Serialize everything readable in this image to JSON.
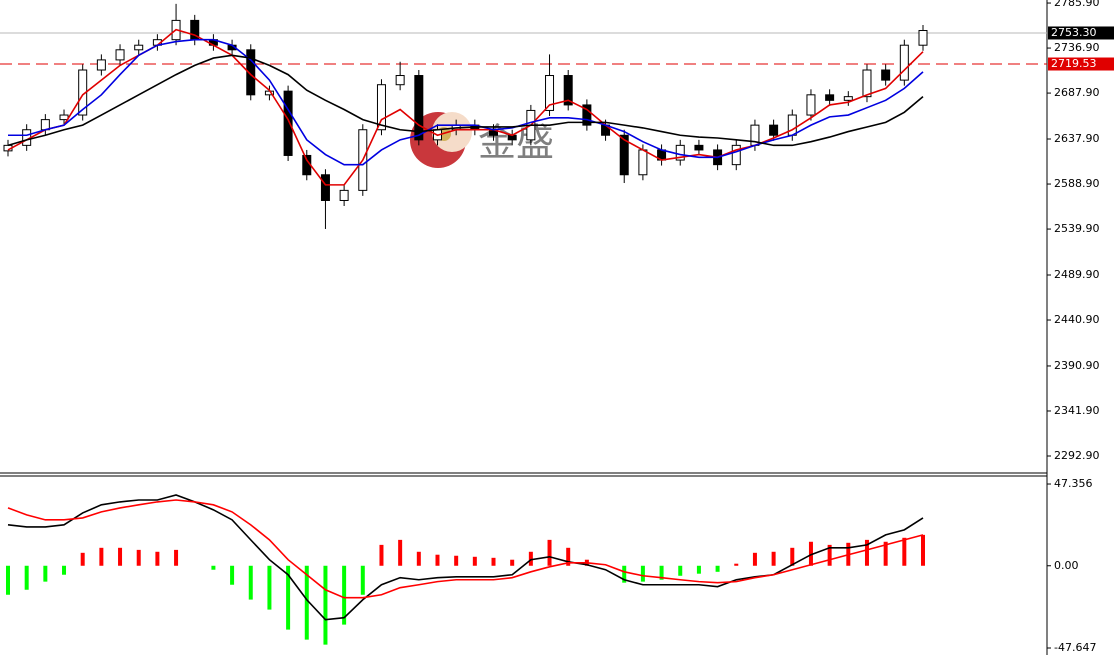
{
  "chart_data": [
    {
      "type": "candlestick",
      "open": [
        2625,
        2631,
        2648,
        2659,
        2664,
        2713,
        2724,
        2735,
        2740,
        2746,
        2767,
        2746,
        2740,
        2735,
        2686,
        2690,
        2620,
        2599,
        2571,
        2582,
        2648,
        2697,
        2707,
        2637,
        2648,
        2653,
        2648,
        2642,
        2637,
        2669,
        2707,
        2675,
        2653,
        2642,
        2599,
        2626,
        2615,
        2631,
        2626,
        2610,
        2631,
        2653,
        2642,
        2664,
        2686,
        2680,
        2684,
        2713,
        2702,
        2740
      ],
      "high": [
        2637,
        2654,
        2665,
        2670,
        2719,
        2730,
        2741,
        2746,
        2752,
        2785,
        2773,
        2752,
        2746,
        2741,
        2696,
        2696,
        2626,
        2605,
        2588,
        2654,
        2703,
        2722,
        2713,
        2654,
        2659,
        2659,
        2654,
        2648,
        2675,
        2730,
        2713,
        2681,
        2659,
        2648,
        2632,
        2632,
        2637,
        2637,
        2632,
        2637,
        2659,
        2659,
        2670,
        2692,
        2692,
        2690,
        2719,
        2719,
        2746,
        2762
      ],
      "low": [
        2619,
        2625,
        2642,
        2653,
        2658,
        2707,
        2718,
        2729,
        2734,
        2740,
        2740,
        2734,
        2729,
        2680,
        2680,
        2614,
        2593,
        2540,
        2565,
        2576,
        2642,
        2691,
        2631,
        2631,
        2642,
        2642,
        2636,
        2631,
        2631,
        2663,
        2669,
        2647,
        2636,
        2590,
        2593,
        2609,
        2609,
        2620,
        2604,
        2604,
        2625,
        2636,
        2636,
        2658,
        2674,
        2674,
        2678,
        2696,
        2696,
        2734
      ],
      "close": [
        2631,
        2648,
        2659,
        2664,
        2713,
        2724,
        2735,
        2740,
        2746,
        2767,
        2746,
        2740,
        2735,
        2686,
        2690,
        2620,
        2599,
        2571,
        2582,
        2648,
        2697,
        2707,
        2637,
        2648,
        2653,
        2648,
        2642,
        2637,
        2669,
        2707,
        2675,
        2653,
        2642,
        2599,
        2626,
        2615,
        2631,
        2626,
        2610,
        2631,
        2653,
        2642,
        2664,
        2686,
        2680,
        2684,
        2713,
        2702,
        2740,
        2756
      ],
      "up_color": "#ffffff",
      "down_color": "#000000",
      "lines": [
        {
          "color": "#e00000",
          "values": [
            2626,
            2637,
            2648,
            2653,
            2686,
            2702,
            2718,
            2729,
            2740,
            2757,
            2751,
            2740,
            2729,
            2708,
            2691,
            2659,
            2615,
            2588,
            2588,
            2615,
            2659,
            2670,
            2653,
            2642,
            2648,
            2648,
            2648,
            2642,
            2653,
            2675,
            2680,
            2670,
            2653,
            2637,
            2626,
            2615,
            2618,
            2621,
            2618,
            2626,
            2631,
            2639,
            2648,
            2661,
            2675,
            2678,
            2686,
            2693,
            2713,
            2733
          ]
        },
        {
          "color": "#0000e0",
          "values": [
            2642,
            2642,
            2648,
            2653,
            2670,
            2686,
            2708,
            2729,
            2740,
            2744,
            2746,
            2746,
            2740,
            2724,
            2702,
            2670,
            2637,
            2621,
            2610,
            2610,
            2626,
            2637,
            2642,
            2653,
            2653,
            2653,
            2648,
            2650,
            2656,
            2661,
            2661,
            2659,
            2653,
            2646,
            2635,
            2626,
            2621,
            2618,
            2618,
            2624,
            2631,
            2637,
            2642,
            2653,
            2662,
            2664,
            2672,
            2680,
            2693,
            2711
          ]
        },
        {
          "color": "#000000",
          "values": [
            2631,
            2637,
            2642,
            2648,
            2653,
            2664,
            2675,
            2686,
            2697,
            2708,
            2718,
            2726,
            2729,
            2726,
            2718,
            2708,
            2691,
            2680,
            2670,
            2659,
            2653,
            2648,
            2646,
            2648,
            2650,
            2651,
            2651,
            2651,
            2653,
            2653,
            2656,
            2656,
            2656,
            2653,
            2650,
            2646,
            2642,
            2640,
            2639,
            2637,
            2635,
            2631,
            2631,
            2635,
            2640,
            2646,
            2651,
            2656,
            2667,
            2684
          ]
        }
      ],
      "price_lines": [
        {
          "value": 2753.3,
          "label": "2753.30",
          "line_color": "#b8b8b8",
          "box_color": "#000000",
          "dashed": false
        },
        {
          "value": 2719.53,
          "label": "2719.53",
          "line_color": "#e00000",
          "box_color": "#e00000",
          "dashed": true
        }
      ],
      "ylim": [
        2274.4,
        2789.2
      ],
      "yticks": [
        {
          "value": 2785.9,
          "label": "2785.90"
        },
        {
          "value": 2736.9,
          "label": "2736.90"
        },
        {
          "value": 2687.9,
          "label": "2687.90"
        },
        {
          "value": 2637.9,
          "label": "2637.90"
        },
        {
          "value": 2588.9,
          "label": "2588.90"
        },
        {
          "value": 2539.9,
          "label": "2539.90"
        },
        {
          "value": 2489.9,
          "label": "2489.90"
        },
        {
          "value": 2440.9,
          "label": "2440.90"
        },
        {
          "value": 2390.9,
          "label": "2390.90"
        },
        {
          "value": 2341.9,
          "label": "2341.90"
        },
        {
          "value": 2292.9,
          "label": "2292.90"
        }
      ]
    },
    {
      "type": "macd",
      "histogram": [
        -16.8,
        -13.9,
        -9.2,
        -5.2,
        7.5,
        10.4,
        10.4,
        9.2,
        8.1,
        9.2,
        0,
        -2.3,
        -11,
        -19.6,
        -25.4,
        -37,
        -42.8,
        -45.7,
        -34.1,
        -16.8,
        12.1,
        15,
        8.1,
        6.4,
        5.8,
        5.2,
        4.6,
        3.5,
        8.1,
        15,
        10.4,
        3.5,
        0,
        -9.8,
        -9.2,
        -8.1,
        -5.8,
        -4.6,
        -3.5,
        1.2,
        7.5,
        8.1,
        10.4,
        13.9,
        12.1,
        13.3,
        15,
        13.9,
        16.2,
        17.9
      ],
      "macd": [
        23.7,
        22.5,
        22.5,
        23.7,
        30.6,
        35.3,
        37,
        38.1,
        38.1,
        41,
        37,
        32.4,
        26.6,
        15,
        3.5,
        -5.2,
        -19.7,
        -31.2,
        -30.1,
        -19.7,
        -11,
        -6.9,
        -8.1,
        -6.9,
        -6.4,
        -6.4,
        -6.4,
        -5.2,
        3.5,
        5.2,
        2.3,
        0.6,
        -2.3,
        -8.1,
        -11,
        -11,
        -11,
        -11,
        -12.1,
        -8.1,
        -6.4,
        -5.2,
        0.6,
        6.4,
        10.4,
        10.4,
        12.1,
        17.9,
        20.8,
        27.7
      ],
      "signal": [
        33.5,
        29.5,
        26.6,
        26.6,
        27.7,
        31.2,
        33.5,
        35.3,
        37,
        38.1,
        37,
        35.3,
        31.2,
        23.7,
        15,
        3.5,
        -5.2,
        -13.9,
        -18.5,
        -18.5,
        -16.8,
        -12.7,
        -11,
        -9.2,
        -8.1,
        -8.1,
        -8.1,
        -6.9,
        -3.5,
        -0.6,
        1.7,
        1.7,
        0.6,
        -3.5,
        -5.8,
        -6.9,
        -8.1,
        -9.2,
        -9.8,
        -9.2,
        -6.9,
        -5.2,
        -2.3,
        0.6,
        3.5,
        6.4,
        9.2,
        12.1,
        15,
        17.9
      ],
      "up_color": "#ff0000",
      "down_color": "#00ff00",
      "macd_color": "#000000",
      "signal_color": "#ff0000",
      "ylim": [
        -51.7,
        52.0
      ],
      "yticks": [
        47.356,
        {
          "value": 0,
          "label": "0.00"
        },
        -47.647
      ]
    }
  ],
  "watermark": "金盛"
}
